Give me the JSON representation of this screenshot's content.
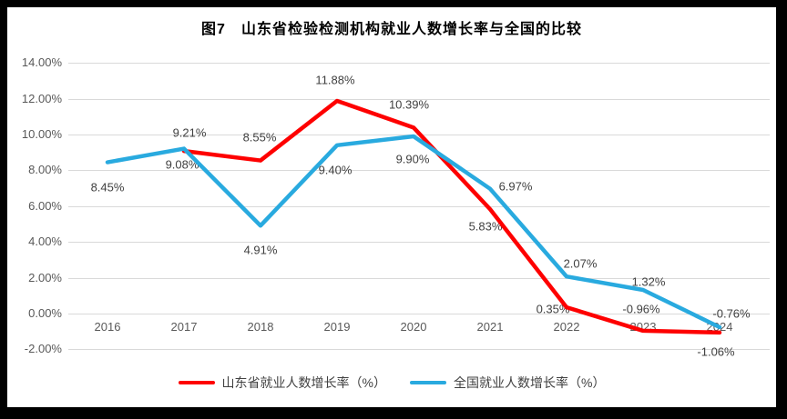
{
  "title": "图7　山东省检验检测机构就业人数增长率与全国的比较",
  "colors": {
    "frame": "#000000",
    "background": "#ffffff",
    "gridline": "#d9d9d9",
    "axis_text": "#595959",
    "data_label_text": "#404040",
    "title_text": "#000000",
    "shandong_red": "#fe0000",
    "national_blue": "#29aadf"
  },
  "chart_data": {
    "type": "line",
    "title": "图7　山东省检验检测机构就业人数增长率与全国的比较",
    "x_categories": [
      "2016",
      "2017",
      "2018",
      "2019",
      "2020",
      "2021",
      "2022",
      "2023",
      "2024"
    ],
    "series": [
      {
        "id": "shandong",
        "name": "山东省就业人数增长率（%）",
        "color": "#fe0000",
        "values": [
          null,
          9.08,
          8.55,
          11.88,
          10.39,
          5.83,
          0.35,
          -0.96,
          -1.06
        ],
        "labels": [
          null,
          "9.08%",
          "8.55%",
          "11.88%",
          "10.39%",
          "5.83%",
          "0.35%",
          "-0.96%",
          "-1.06%"
        ]
      },
      {
        "id": "national",
        "name": "全国就业人数增长率（%）",
        "color": "#29aadf",
        "values": [
          8.45,
          9.21,
          4.91,
          9.4,
          9.9,
          6.97,
          2.07,
          1.32,
          -0.76
        ],
        "labels": [
          "8.45%",
          "9.21%",
          "4.91%",
          "9.40%",
          "9.90%",
          "6.97%",
          "2.07%",
          "1.32%",
          "-0.76%"
        ]
      }
    ],
    "y_axis": {
      "min": -2,
      "max": 14,
      "step": 2,
      "tick_labels": [
        "14.00%",
        "12.00%",
        "10.00%",
        "8.00%",
        "6.00%",
        "4.00%",
        "2.00%",
        "0.00%",
        "-2.00%"
      ]
    },
    "grid": true,
    "legend_position": "bottom",
    "layout_hints": {
      "label_offsets": {
        "shandong": [
          null,
          [
            -2,
            15
          ],
          [
            -1,
            -26
          ],
          [
            -2,
            -23
          ],
          [
            -5,
            -25
          ],
          [
            -5,
            19
          ],
          [
            -15,
            2
          ],
          [
            -2,
            -24
          ],
          [
            -4,
            21
          ]
        ],
        "national": [
          [
            0,
            27
          ],
          [
            6,
            -18
          ],
          [
            0,
            27
          ],
          [
            -2,
            27
          ],
          [
            -1,
            25
          ],
          [
            28,
            -3
          ],
          [
            15,
            -14
          ],
          [
            6,
            -9
          ],
          [
            13,
            -15
          ]
        ]
      }
    }
  }
}
